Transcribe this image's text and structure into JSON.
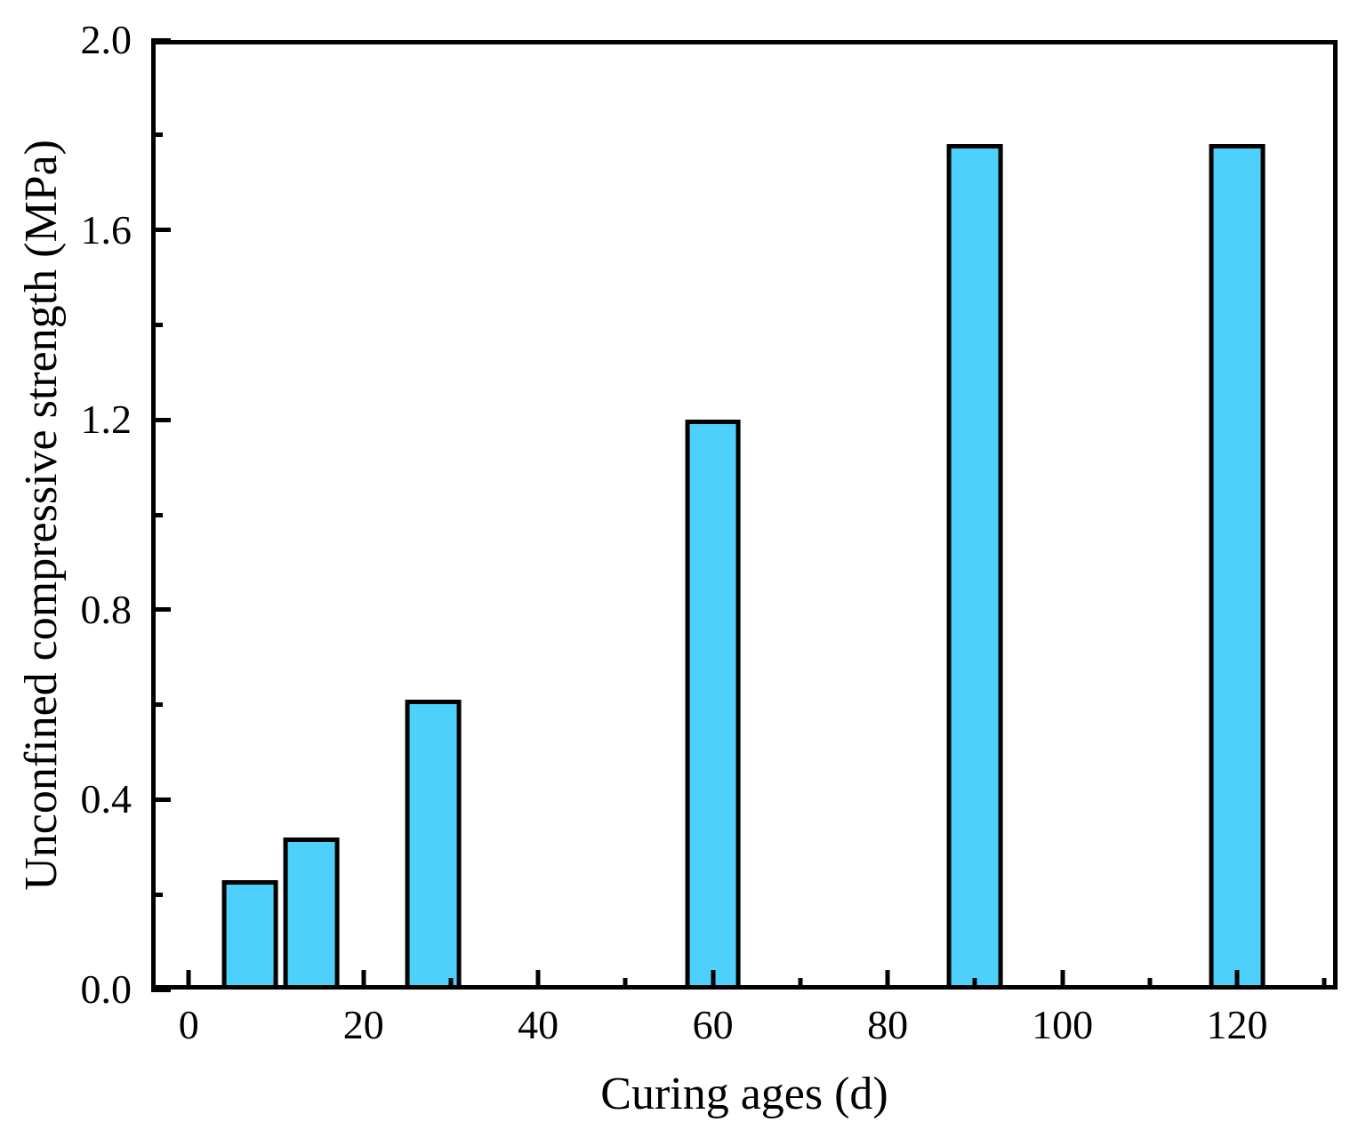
{
  "chart_data": {
    "type": "bar",
    "title": "",
    "xlabel": "Curing ages (d)",
    "ylabel": "Unconfined compressive strength (MPa)",
    "x": [
      7,
      14,
      28,
      60,
      90,
      120
    ],
    "values": [
      0.23,
      0.32,
      0.61,
      1.2,
      1.78,
      1.78
    ],
    "bar_width_units": 6.4,
    "xlim": [
      -4.3,
      131.5
    ],
    "ylim": [
      0,
      2.0
    ],
    "x_major_ticks": [
      0,
      20,
      40,
      60,
      80,
      100,
      120
    ],
    "x_major_tick_labels": [
      "0",
      "20",
      "40",
      "60",
      "80",
      "100",
      "120"
    ],
    "x_minor_ticks": [
      10,
      30,
      50,
      70,
      90,
      110,
      130
    ],
    "y_major_ticks": [
      0,
      0.4,
      0.8,
      1.2,
      1.6,
      2.0
    ],
    "y_major_tick_labels": [
      "0.0",
      "0.4",
      "0.8",
      "1.2",
      "1.6",
      "2.0"
    ],
    "y_minor_ticks": [
      0.2,
      0.6,
      1.0,
      1.4,
      1.8
    ],
    "grid": false,
    "legend": null,
    "tick_direction": "in",
    "bar_fill_color": "#4DD1FC",
    "bar_edge_color": "#000000",
    "axis_color": "#000000",
    "background_color": "#FFFFFF"
  }
}
